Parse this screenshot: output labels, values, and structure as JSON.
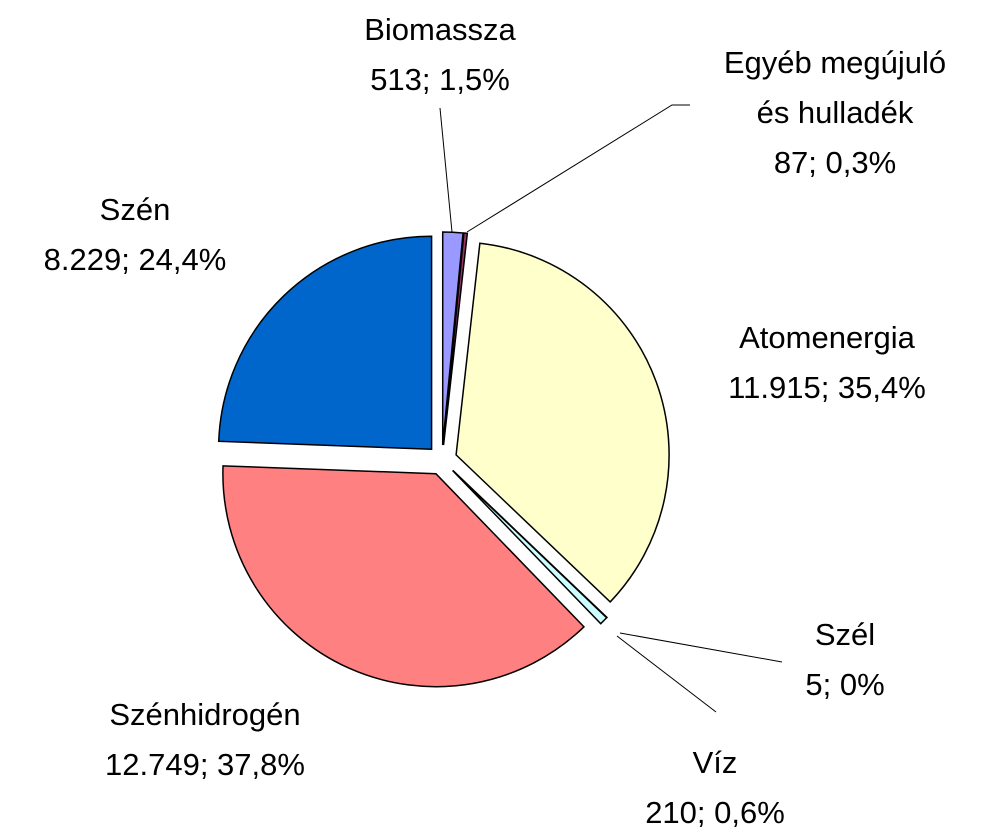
{
  "chart_data": {
    "type": "pie",
    "categories": [
      "Biomassza",
      "Egyéb megújuló és hulladék",
      "Atomenergia",
      "Szél",
      "Víz",
      "Szénhidrogén",
      "Szén"
    ],
    "values": [
      513,
      87,
      11915,
      5,
      210,
      12749,
      8229
    ],
    "value_labels": [
      "513; 1,5%",
      "87; 0,3%",
      "11.915; 35,4%",
      "5; 0%",
      "210; 0,6%",
      "12.749; 37,8%",
      "8.229; 24,4%"
    ],
    "colors": [
      "#9999ff",
      "#993366",
      "#ffffcc",
      "#ccffcc",
      "#ccffff",
      "#ff8080",
      "#0066cc"
    ]
  }
}
